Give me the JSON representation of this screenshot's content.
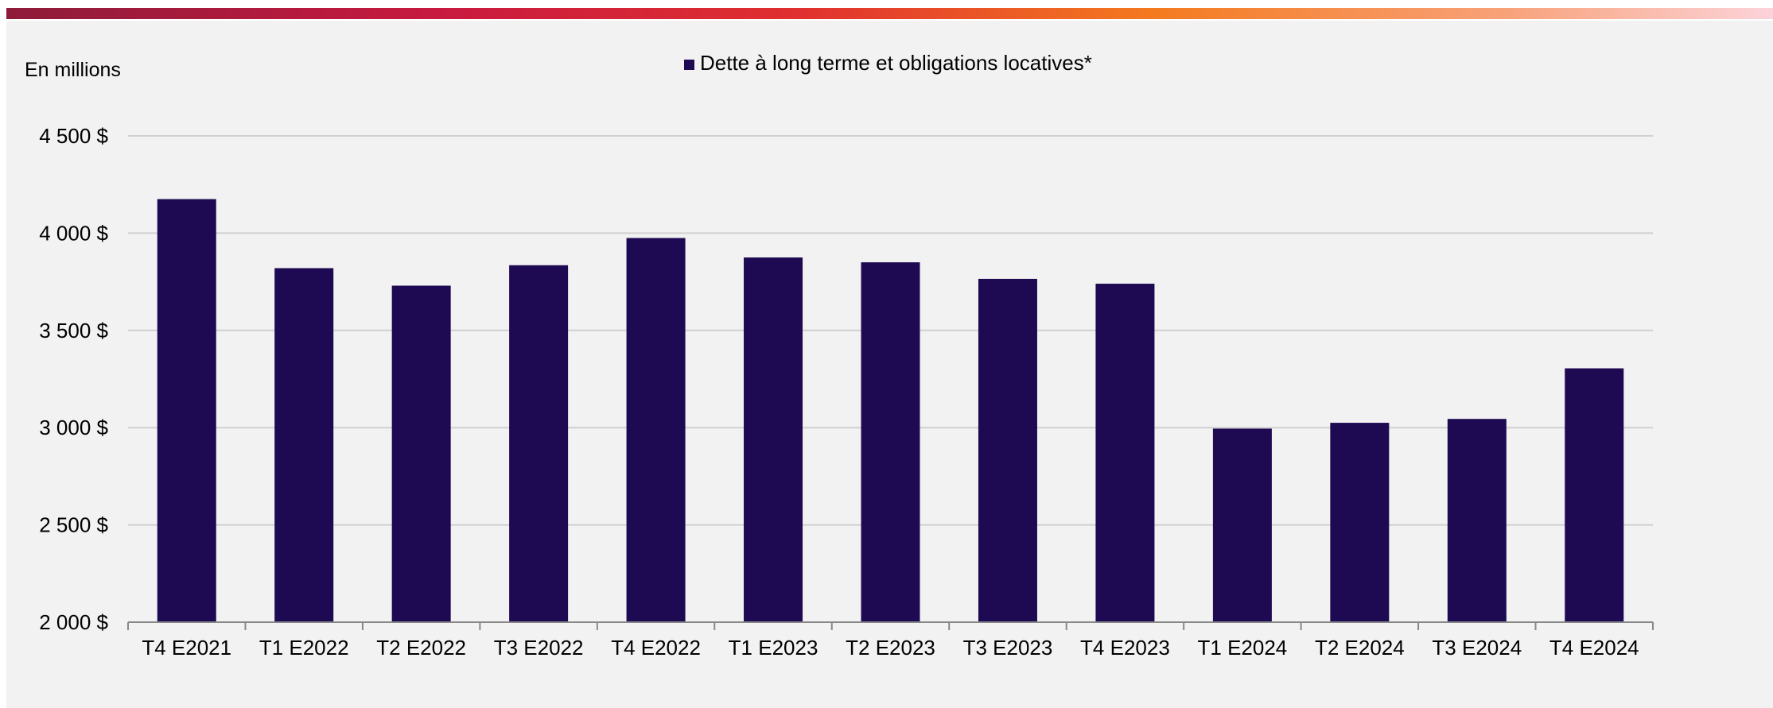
{
  "chart_data": {
    "type": "bar",
    "unit_label": "En millions",
    "legend": {
      "entries": [
        {
          "name": "Dette à long terme et obligations locatives*",
          "color": "#1e0a52"
        }
      ],
      "placement": "top-center"
    },
    "categories": [
      "T4 E2021",
      "T1 E2022",
      "T2 E2022",
      "T3 E2022",
      "T4 E2022",
      "T1 E2023",
      "T2 E2023",
      "T3 E2023",
      "T4 E2023",
      "T1 E2024",
      "T2 E2024",
      "T3 E2024",
      "T4 E2024"
    ],
    "series": [
      {
        "name": "Dette à long terme et obligations locatives*",
        "color": "#1e0a52",
        "values": [
          4175,
          3820,
          3730,
          3835,
          3975,
          3875,
          3850,
          3765,
          3740,
          2995,
          3025,
          3045,
          3305
        ]
      }
    ],
    "y_ticks": [
      {
        "value": 2000,
        "label": "2 000 $"
      },
      {
        "value": 2500,
        "label": "2 500 $"
      },
      {
        "value": 3000,
        "label": "3 000 $"
      },
      {
        "value": 3500,
        "label": "3 500 $"
      },
      {
        "value": 4000,
        "label": "4 000 $"
      },
      {
        "value": 4500,
        "label": "4 500 $"
      }
    ],
    "ylim": [
      2000,
      4500
    ],
    "grid": true,
    "colors": {
      "bar": "#1e0a52",
      "grid": "#d0d0d0",
      "axis": "#888888"
    }
  }
}
